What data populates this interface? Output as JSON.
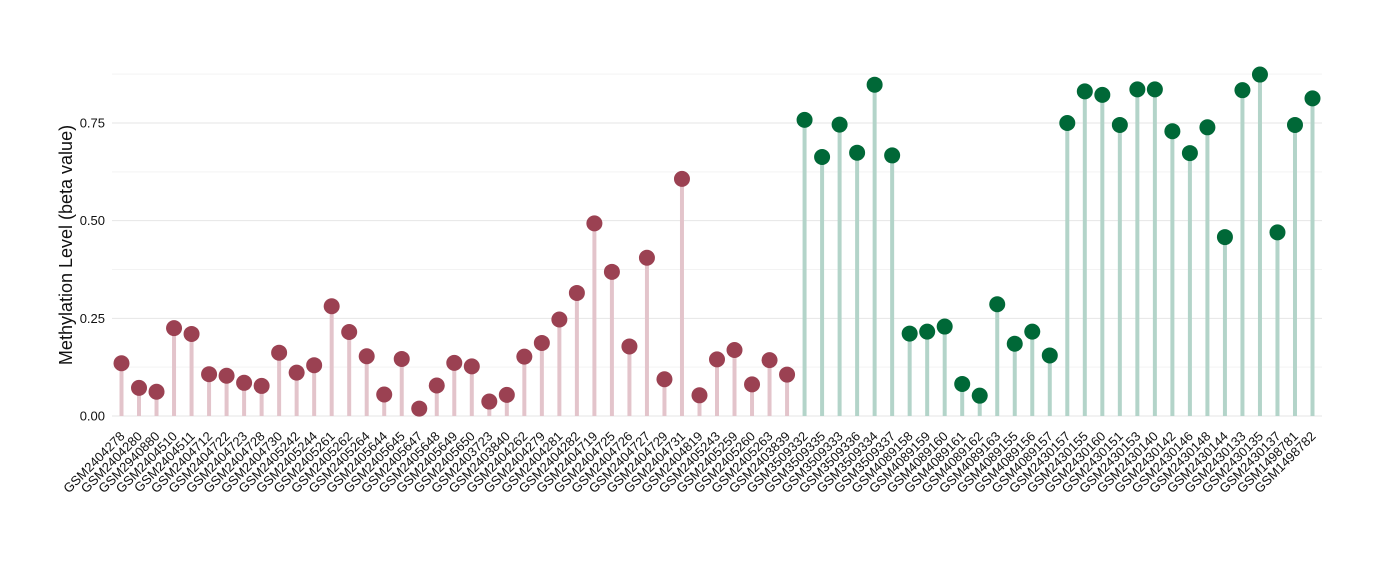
{
  "chart_data": {
    "type": "lollipop",
    "ylabel": "Methylation Level (beta value)",
    "ylim": [
      0,
      0.9
    ],
    "yticks": [
      0.0,
      0.25,
      0.5,
      0.75
    ],
    "ytick_labels": [
      "0.00",
      "0.25",
      "0.50",
      "0.75"
    ],
    "grid": true,
    "legend": "none",
    "colors": {
      "group1_point": "#9b4152",
      "group1_stem": "#e3c4cb",
      "group2_point": "#006837",
      "group2_stem": "#b3d4c9"
    },
    "points": [
      {
        "x": "GSM2404278",
        "y": 0.135,
        "group": 1
      },
      {
        "x": "GSM2404280",
        "y": 0.072,
        "group": 1
      },
      {
        "x": "GSM2940880",
        "y": 0.062,
        "group": 1
      },
      {
        "x": "GSM2404510",
        "y": 0.225,
        "group": 1
      },
      {
        "x": "GSM2404511",
        "y": 0.21,
        "group": 1
      },
      {
        "x": "GSM2404712",
        "y": 0.107,
        "group": 1
      },
      {
        "x": "GSM2404722",
        "y": 0.103,
        "group": 1
      },
      {
        "x": "GSM2404723",
        "y": 0.085,
        "group": 1
      },
      {
        "x": "GSM2404728",
        "y": 0.077,
        "group": 1
      },
      {
        "x": "GSM2404730",
        "y": 0.162,
        "group": 1
      },
      {
        "x": "GSM2405242",
        "y": 0.111,
        "group": 1
      },
      {
        "x": "GSM2405244",
        "y": 0.13,
        "group": 1
      },
      {
        "x": "GSM2405261",
        "y": 0.281,
        "group": 1
      },
      {
        "x": "GSM2405262",
        "y": 0.215,
        "group": 1
      },
      {
        "x": "GSM2405264",
        "y": 0.153,
        "group": 1
      },
      {
        "x": "GSM2405644",
        "y": 0.055,
        "group": 1
      },
      {
        "x": "GSM2405645",
        "y": 0.146,
        "group": 1
      },
      {
        "x": "GSM2405647",
        "y": 0.019,
        "group": 1
      },
      {
        "x": "GSM2405648",
        "y": 0.078,
        "group": 1
      },
      {
        "x": "GSM2405649",
        "y": 0.136,
        "group": 1
      },
      {
        "x": "GSM2405650",
        "y": 0.127,
        "group": 1
      },
      {
        "x": "GSM2403723",
        "y": 0.037,
        "group": 1
      },
      {
        "x": "GSM2403840",
        "y": 0.054,
        "group": 1
      },
      {
        "x": "GSM2404262",
        "y": 0.152,
        "group": 1
      },
      {
        "x": "GSM2404279",
        "y": 0.187,
        "group": 1
      },
      {
        "x": "GSM2404281",
        "y": 0.247,
        "group": 1
      },
      {
        "x": "GSM2404282",
        "y": 0.315,
        "group": 1
      },
      {
        "x": "GSM2404719",
        "y": 0.493,
        "group": 1
      },
      {
        "x": "GSM2404725",
        "y": 0.369,
        "group": 1
      },
      {
        "x": "GSM2404726",
        "y": 0.178,
        "group": 1
      },
      {
        "x": "GSM2404727",
        "y": 0.405,
        "group": 1
      },
      {
        "x": "GSM2404729",
        "y": 0.094,
        "group": 1
      },
      {
        "x": "GSM2404731",
        "y": 0.607,
        "group": 1
      },
      {
        "x": "GSM2404819",
        "y": 0.053,
        "group": 1
      },
      {
        "x": "GSM2405243",
        "y": 0.145,
        "group": 1
      },
      {
        "x": "GSM2405259",
        "y": 0.169,
        "group": 1
      },
      {
        "x": "GSM2405260",
        "y": 0.081,
        "group": 1
      },
      {
        "x": "GSM2405263",
        "y": 0.143,
        "group": 1
      },
      {
        "x": "GSM2403839",
        "y": 0.106,
        "group": 1
      },
      {
        "x": "GSM3509332",
        "y": 0.758,
        "group": 2
      },
      {
        "x": "GSM3509335",
        "y": 0.663,
        "group": 2
      },
      {
        "x": "GSM3509333",
        "y": 0.746,
        "group": 2
      },
      {
        "x": "GSM3509336",
        "y": 0.674,
        "group": 2
      },
      {
        "x": "GSM3509334",
        "y": 0.848,
        "group": 2
      },
      {
        "x": "GSM3509337",
        "y": 0.667,
        "group": 2
      },
      {
        "x": "GSM4089158",
        "y": 0.211,
        "group": 2
      },
      {
        "x": "GSM4089159",
        "y": 0.216,
        "group": 2
      },
      {
        "x": "GSM4089160",
        "y": 0.229,
        "group": 2
      },
      {
        "x": "GSM4089161",
        "y": 0.082,
        "group": 2
      },
      {
        "x": "GSM4089162",
        "y": 0.052,
        "group": 2
      },
      {
        "x": "GSM4089163",
        "y": 0.286,
        "group": 2
      },
      {
        "x": "GSM4089155",
        "y": 0.185,
        "group": 2
      },
      {
        "x": "GSM4089156",
        "y": 0.216,
        "group": 2
      },
      {
        "x": "GSM4089157",
        "y": 0.155,
        "group": 2
      },
      {
        "x": "GSM2430157",
        "y": 0.75,
        "group": 2
      },
      {
        "x": "GSM2430155",
        "y": 0.831,
        "group": 2
      },
      {
        "x": "GSM2430160",
        "y": 0.822,
        "group": 2
      },
      {
        "x": "GSM2430151",
        "y": 0.745,
        "group": 2
      },
      {
        "x": "GSM2430153",
        "y": 0.836,
        "group": 2
      },
      {
        "x": "GSM2430140",
        "y": 0.836,
        "group": 2
      },
      {
        "x": "GSM2430142",
        "y": 0.729,
        "group": 2
      },
      {
        "x": "GSM2430146",
        "y": 0.673,
        "group": 2
      },
      {
        "x": "GSM2430148",
        "y": 0.739,
        "group": 2
      },
      {
        "x": "GSM2430144",
        "y": 0.458,
        "group": 2
      },
      {
        "x": "GSM2430133",
        "y": 0.834,
        "group": 2
      },
      {
        "x": "GSM2430135",
        "y": 0.874,
        "group": 2
      },
      {
        "x": "GSM2430137",
        "y": 0.47,
        "group": 2
      },
      {
        "x": "GSM1498781",
        "y": 0.745,
        "group": 2
      },
      {
        "x": "GSM1498782",
        "y": 0.813,
        "group": 2
      }
    ]
  }
}
